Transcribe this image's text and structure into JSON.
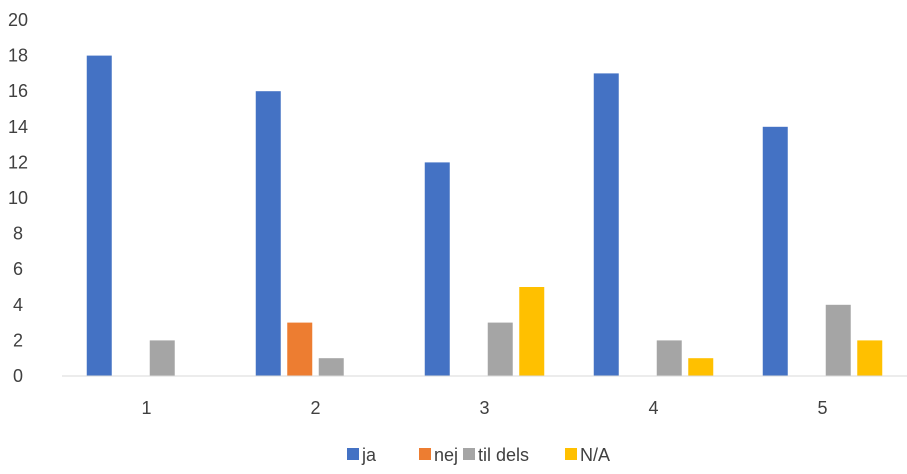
{
  "chart_data": {
    "type": "bar",
    "categories": [
      "1",
      "2",
      "3",
      "4",
      "5"
    ],
    "series": [
      {
        "name": "ja",
        "color": "#4472C4",
        "values": [
          18,
          16,
          12,
          17,
          14
        ]
      },
      {
        "name": "nej",
        "color": "#ED7D31",
        "values": [
          0,
          3,
          0,
          0,
          0
        ]
      },
      {
        "name": "til dels",
        "color": "#A5A5A5",
        "values": [
          2,
          1,
          3,
          2,
          4
        ]
      },
      {
        "name": "N/A",
        "color": "#FFC000",
        "values": [
          0,
          0,
          5,
          1,
          2
        ]
      }
    ],
    "ylim": [
      0,
      20
    ],
    "yticks": [
      "0",
      "2",
      "4",
      "6",
      "8",
      "10",
      "12",
      "14",
      "16",
      "18",
      "20"
    ],
    "grid": false,
    "legend_position": "bottom"
  }
}
